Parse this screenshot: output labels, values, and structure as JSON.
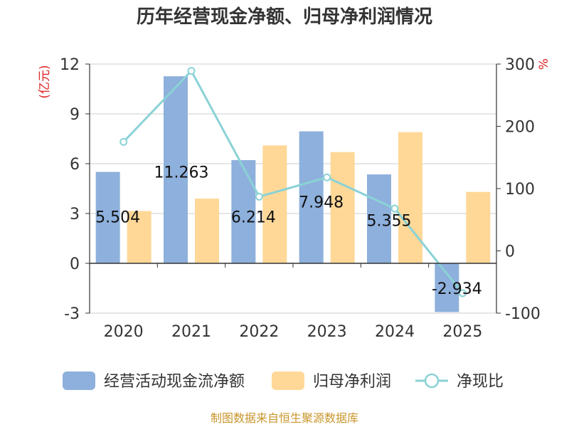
{
  "chart_data": {
    "type": "bar",
    "title": "历年经营现金净额、归母净利润情况",
    "categories": [
      "2020",
      "2021",
      "2022",
      "2023",
      "2024",
      "2025"
    ],
    "series": [
      {
        "name": "经营活动现金流净额",
        "kind": "bar",
        "axis": "left",
        "color": "#8eb0dc",
        "values": [
          5.504,
          11.263,
          6.214,
          7.948,
          5.355,
          -2.934
        ],
        "labels": [
          "5.504",
          "11.263",
          "6.214",
          "7.948",
          "5.355",
          "-2.934"
        ]
      },
      {
        "name": "归母净利润",
        "kind": "bar",
        "axis": "left",
        "color": "#ffd898",
        "values": [
          3.15,
          3.9,
          7.1,
          6.7,
          7.9,
          4.3
        ]
      },
      {
        "name": "净现比",
        "kind": "line",
        "axis": "right",
        "color": "#8ad2d6",
        "values": [
          175,
          289,
          87,
          118,
          68,
          -68
        ]
      }
    ],
    "y_left": {
      "unit": "(亿元)",
      "min": -3,
      "max": 12,
      "ticks": [
        -3,
        0,
        3,
        6,
        9,
        12
      ]
    },
    "y_right": {
      "unit": "%",
      "min": -100,
      "max": 300,
      "ticks": [
        -100,
        0,
        100,
        200,
        300
      ]
    },
    "grid": true,
    "legend_position": "bottom",
    "source": "制图数据来自恒生聚源数据库"
  }
}
